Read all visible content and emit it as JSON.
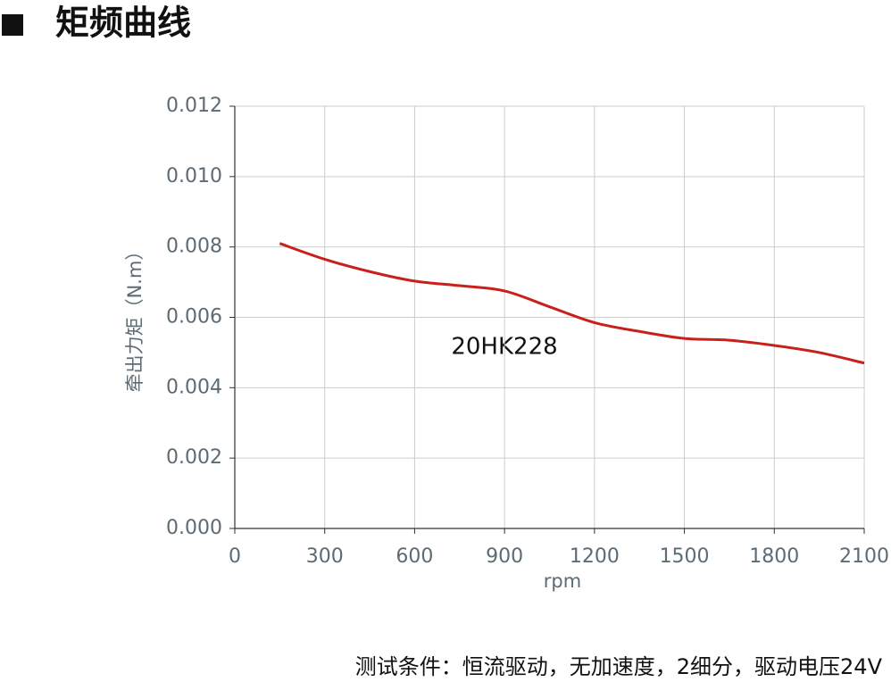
{
  "chart_data": {
    "type": "line",
    "title": "矩频曲线",
    "ylabel": "牵出力矩（N.m）",
    "xlabel": "rpm",
    "annotation": "20HK228",
    "footnote": "测试条件：恒流驱动，无加速度，2细分，驱动电压24V",
    "x": [
      150,
      300,
      450,
      600,
      750,
      900,
      1050,
      1200,
      1350,
      1500,
      1650,
      1800,
      1950,
      2100
    ],
    "values": [
      0.0081,
      0.00765,
      0.0073,
      0.00703,
      0.0069,
      0.00675,
      0.0063,
      0.00585,
      0.0056,
      0.0054,
      0.00535,
      0.0052,
      0.005,
      0.0047
    ],
    "color": "#c8201c",
    "xlim": [
      0,
      2100
    ],
    "xticks": [
      0,
      300,
      600,
      900,
      1200,
      1500,
      1800,
      2100
    ],
    "ylim": [
      0,
      0.012
    ],
    "yticks": [
      {
        "value": 0,
        "label": "0.000"
      },
      0.002,
      0.004,
      0.006,
      0.008,
      {
        "value": 0.01,
        "label": "0.010"
      },
      0.012
    ],
    "grid": true
  }
}
